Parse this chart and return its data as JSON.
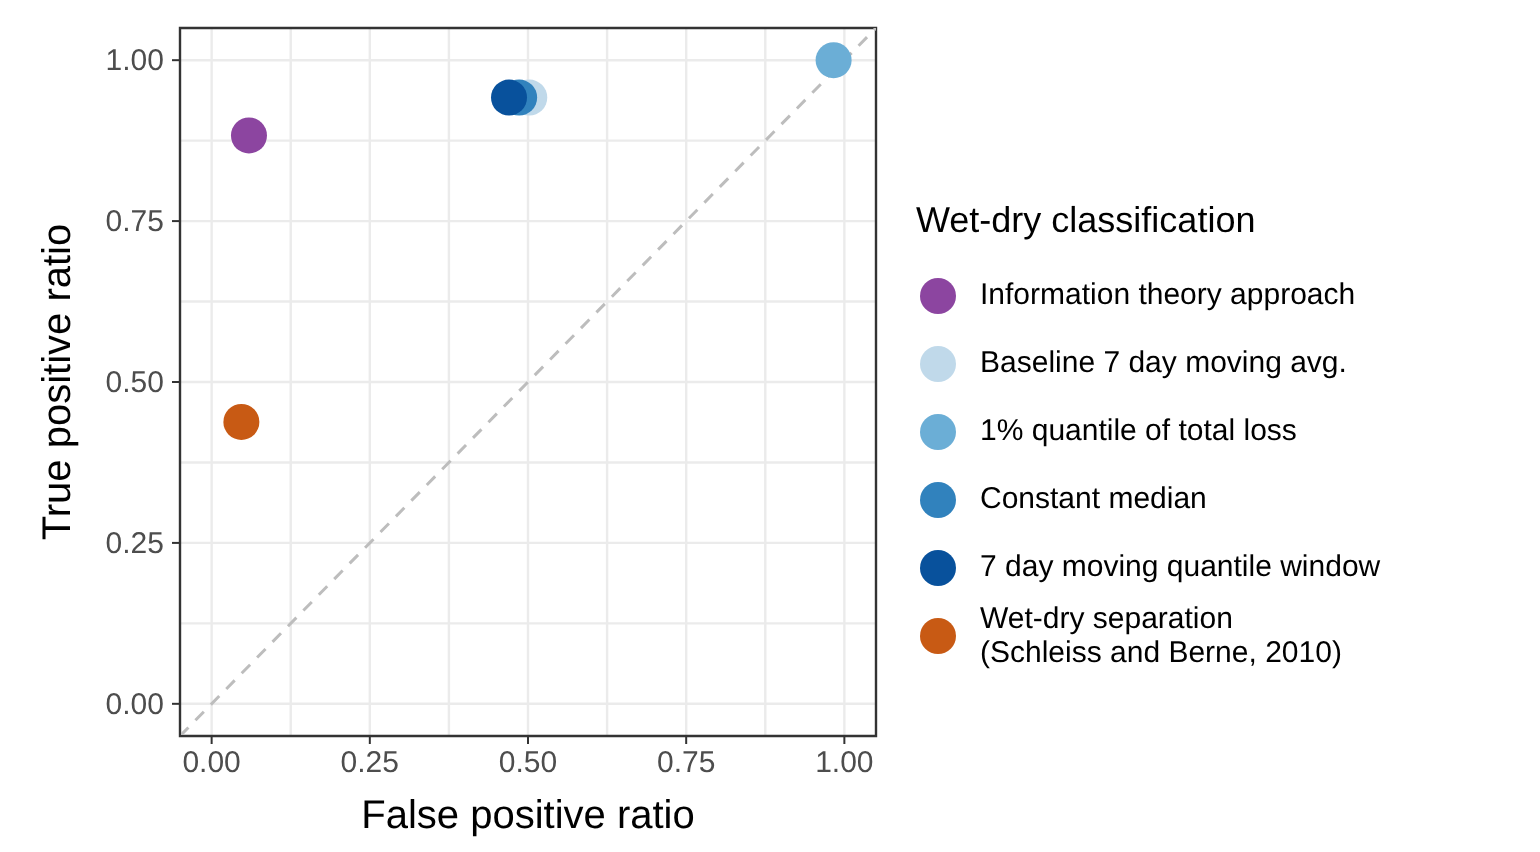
{
  "chart_data": {
    "type": "scatter",
    "xlabel": "False positive ratio",
    "ylabel": "True positive ratio",
    "legend_title": "Wet-dry classification",
    "xlim": [
      -0.05,
      1.05
    ],
    "ylim": [
      -0.05,
      1.05
    ],
    "xticks": [
      {
        "value": 0,
        "label": "0.00"
      },
      {
        "value": 0.125,
        "label": null
      },
      {
        "value": 0.25,
        "label": "0.25"
      },
      {
        "value": 0.375,
        "label": null
      },
      {
        "value": 0.5,
        "label": "0.50"
      },
      {
        "value": 0.625,
        "label": null
      },
      {
        "value": 0.75,
        "label": "0.75"
      },
      {
        "value": 0.875,
        "label": null
      },
      {
        "value": 1,
        "label": "1.00"
      }
    ],
    "yticks": [
      {
        "value": 0,
        "label": "0.00"
      },
      {
        "value": 0.125,
        "label": null
      },
      {
        "value": 0.25,
        "label": "0.25"
      },
      {
        "value": 0.375,
        "label": null
      },
      {
        "value": 0.5,
        "label": "0.50"
      },
      {
        "value": 0.625,
        "label": null
      },
      {
        "value": 0.75,
        "label": "0.75"
      },
      {
        "value": 0.875,
        "label": null
      },
      {
        "value": 1,
        "label": "1.00"
      }
    ],
    "grid": true,
    "legend": "right",
    "marker": "circle",
    "series": [
      {
        "type": "line",
        "color": "#bdbdbd",
        "line_style": "dashed",
        "marker": "none",
        "x": [
          -0.05,
          1.05
        ],
        "values": [
          -0.05,
          1.05
        ]
      },
      {
        "name": "Information theory approach",
        "color": "#8c45a0",
        "x": [
          0.059
        ],
        "values": [
          0.883
        ]
      },
      {
        "name": "Baseline 7 day moving avg.",
        "color": "#c0d9ea",
        "x": [
          0.502
        ],
        "values": [
          0.942
        ]
      },
      {
        "name": "1% quantile of total loss",
        "color": "#6baed6",
        "x": [
          0.983
        ],
        "values": [
          1.0
        ]
      },
      {
        "name": "Constant median",
        "color": "#3182bd",
        "x": [
          0.486
        ],
        "values": [
          0.942
        ]
      },
      {
        "name": "7 day moving quantile window",
        "color": "#08519c",
        "x": [
          0.47
        ],
        "values": [
          0.942
        ]
      },
      {
        "name": "Wet-dry separation\n(Schleiss and Berne, 2010)",
        "color": "#c85a14",
        "x": [
          0.047
        ],
        "values": [
          0.438
        ]
      }
    ]
  }
}
